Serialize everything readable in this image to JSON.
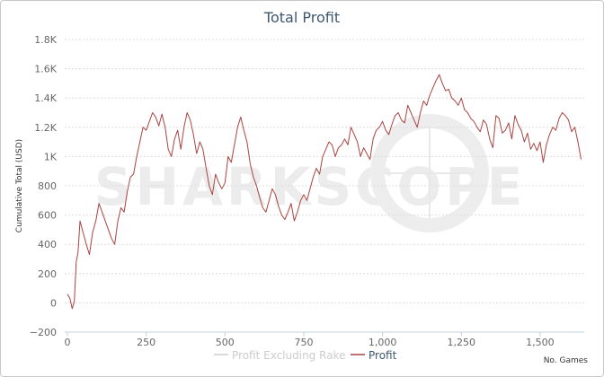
{
  "chart_data": {
    "type": "line",
    "title": "Total Profit",
    "ylabel": "Cumulative Total (USD)",
    "xunit": "No. Games",
    "watermark": "SHARKSCOPE",
    "xlim": [
      0,
      1640
    ],
    "ylim": [
      -200,
      1800
    ],
    "xticks": [
      {
        "value": 0,
        "label": "0"
      },
      {
        "value": 250,
        "label": "250"
      },
      {
        "value": 500,
        "label": "500"
      },
      {
        "value": 750,
        "label": "750"
      },
      {
        "value": 1000,
        "label": "1,000"
      },
      {
        "value": 1250,
        "label": "1,250"
      },
      {
        "value": 1500,
        "label": "1,500"
      }
    ],
    "yticks": [
      {
        "value": -200,
        "label": "−200"
      },
      {
        "value": 0,
        "label": "0"
      },
      {
        "value": 200,
        "label": "200"
      },
      {
        "value": 400,
        "label": "400"
      },
      {
        "value": 600,
        "label": "600"
      },
      {
        "value": 800,
        "label": "800"
      },
      {
        "value": 1000,
        "label": "1K"
      },
      {
        "value": 1200,
        "label": "1.2K"
      },
      {
        "value": 1400,
        "label": "1.4K"
      },
      {
        "value": 1600,
        "label": "1.6K"
      },
      {
        "value": 1800,
        "label": "1.8K"
      }
    ],
    "grid": true,
    "legend_position": "bottom-center",
    "series": [
      {
        "name": "Profit Excluding Rake",
        "color": "#cccccc",
        "visible": false,
        "x": [],
        "y": []
      },
      {
        "name": "Profit",
        "color": "#a94442",
        "visible": true,
        "x": [
          0,
          8,
          15,
          22,
          28,
          34,
          40,
          50,
          60,
          70,
          80,
          90,
          100,
          110,
          120,
          130,
          140,
          150,
          160,
          170,
          180,
          190,
          200,
          210,
          220,
          230,
          240,
          250,
          260,
          270,
          280,
          290,
          300,
          310,
          320,
          330,
          340,
          350,
          360,
          370,
          380,
          390,
          400,
          410,
          420,
          430,
          440,
          450,
          460,
          470,
          480,
          490,
          500,
          510,
          520,
          530,
          540,
          550,
          560,
          570,
          580,
          590,
          600,
          610,
          620,
          630,
          640,
          650,
          660,
          670,
          680,
          690,
          700,
          710,
          720,
          730,
          740,
          750,
          760,
          770,
          780,
          790,
          800,
          810,
          820,
          830,
          840,
          850,
          860,
          870,
          880,
          890,
          900,
          910,
          920,
          930,
          940,
          950,
          960,
          970,
          980,
          990,
          1000,
          1010,
          1020,
          1030,
          1040,
          1050,
          1060,
          1070,
          1080,
          1090,
          1100,
          1110,
          1120,
          1130,
          1140,
          1150,
          1160,
          1170,
          1180,
          1190,
          1200,
          1210,
          1220,
          1230,
          1240,
          1250,
          1260,
          1270,
          1280,
          1290,
          1300,
          1310,
          1320,
          1330,
          1340,
          1350,
          1360,
          1370,
          1380,
          1390,
          1400,
          1410,
          1420,
          1430,
          1440,
          1450,
          1460,
          1470,
          1480,
          1490,
          1500,
          1510,
          1520,
          1530,
          1540,
          1550,
          1560,
          1570,
          1580,
          1590,
          1600,
          1610,
          1620,
          1630
        ],
        "y": [
          60,
          30,
          -40,
          10,
          280,
          350,
          560,
          480,
          400,
          330,
          480,
          560,
          680,
          620,
          560,
          500,
          440,
          400,
          560,
          650,
          620,
          760,
          860,
          880,
          1000,
          1100,
          1200,
          1180,
          1240,
          1300,
          1270,
          1210,
          1290,
          1200,
          1050,
          1000,
          1120,
          1180,
          1050,
          1200,
          1300,
          1250,
          1150,
          1020,
          1100,
          1050,
          920,
          800,
          740,
          880,
          820,
          780,
          820,
          1000,
          960,
          1080,
          1200,
          1270,
          1180,
          1100,
          950,
          860,
          800,
          720,
          650,
          620,
          700,
          780,
          740,
          660,
          600,
          570,
          620,
          680,
          560,
          620,
          700,
          740,
          700,
          780,
          860,
          920,
          880,
          1000,
          1050,
          1100,
          1080,
          1000,
          1060,
          1080,
          1120,
          1080,
          1200,
          1150,
          1100,
          1000,
          1060,
          1020,
          980,
          1120,
          1180,
          1200,
          1240,
          1180,
          1150,
          1220,
          1280,
          1300,
          1250,
          1230,
          1350,
          1300,
          1250,
          1200,
          1300,
          1380,
          1350,
          1420,
          1470,
          1520,
          1560,
          1500,
          1450,
          1460,
          1400,
          1380,
          1350,
          1400,
          1320,
          1300,
          1260,
          1240,
          1200,
          1170,
          1250,
          1220,
          1120,
          1060,
          1280,
          1260,
          1160,
          1180,
          1230,
          1120,
          1280,
          1220,
          1180,
          1100,
          1160,
          1050,
          1090,
          1040,
          1100,
          960,
          1080,
          1150,
          1200,
          1180,
          1260,
          1300,
          1280,
          1250,
          1170,
          1200,
          1100,
          980
        ]
      }
    ]
  }
}
